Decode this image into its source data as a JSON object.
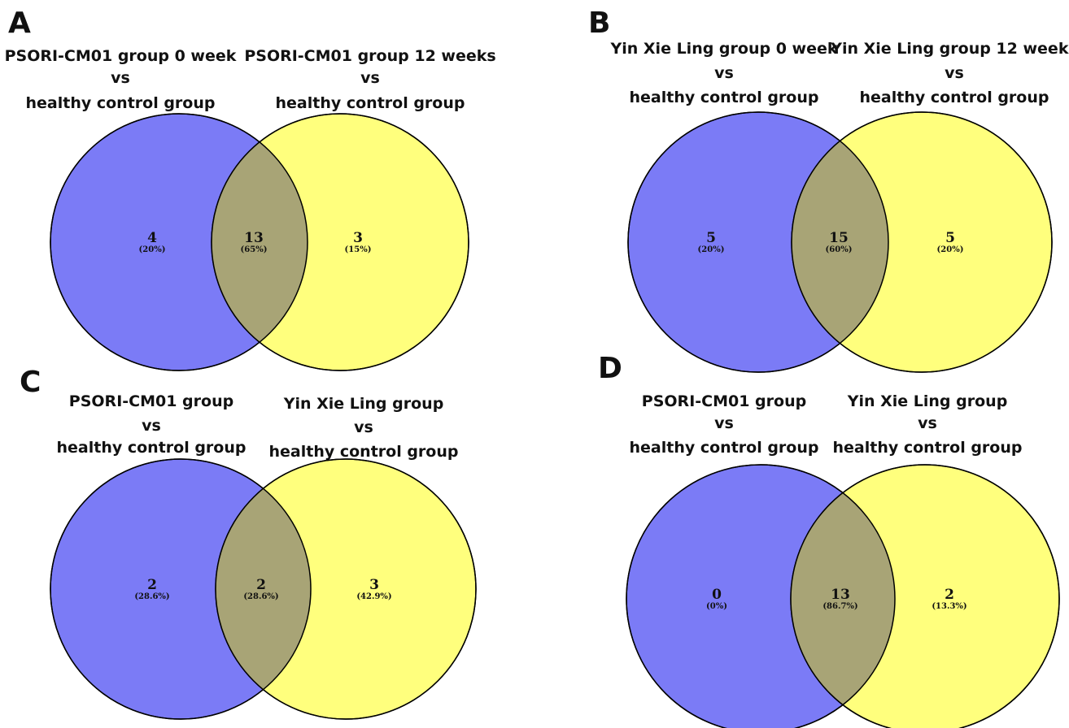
{
  "colors": {
    "left_set": "#7B7BF6",
    "right_set": "#FFFF7D",
    "overlap": "#A8A476",
    "outline": "#000000"
  },
  "panels": [
    {
      "letter": "A",
      "left_label": [
        "PSORI-CM01 group 0 week",
        "vs",
        "healthy control group"
      ],
      "right_label": [
        "PSORI-CM01 group 12 weeks",
        "vs",
        "healthy control group"
      ],
      "left_only": {
        "count": "4",
        "percent": "(20%)"
      },
      "overlap": {
        "count": "13",
        "percent": "(65%)"
      },
      "right_only": {
        "count": "3",
        "percent": "(15%)"
      }
    },
    {
      "letter": "B",
      "left_label": [
        "Yin Xie Ling group 0 week",
        "vs",
        "healthy control group"
      ],
      "right_label": [
        "Yin Xie Ling group 12 weeks",
        "vs",
        "healthy control group"
      ],
      "left_only": {
        "count": "5",
        "percent": "(20%)"
      },
      "overlap": {
        "count": "15",
        "percent": "(60%)"
      },
      "right_only": {
        "count": "5",
        "percent": "(20%)"
      }
    },
    {
      "letter": "C",
      "left_label": [
        "PSORI-CM01 group",
        "vs",
        "healthy control group"
      ],
      "right_label": [
        "Yin Xie Ling group",
        "vs",
        "healthy control group"
      ],
      "left_only": {
        "count": "2",
        "percent": "(28.6%)"
      },
      "overlap": {
        "count": "2",
        "percent": "(28.6%)"
      },
      "right_only": {
        "count": "3",
        "percent": "(42.9%)"
      }
    },
    {
      "letter": "D",
      "left_label": [
        "PSORI-CM01 group",
        "vs",
        "healthy control group"
      ],
      "right_label": [
        "Yin Xie Ling group",
        "vs",
        "healthy control group"
      ],
      "left_only": {
        "count": "0",
        "percent": "(0%)"
      },
      "overlap": {
        "count": "13",
        "percent": "(86.7%)"
      },
      "right_only": {
        "count": "2",
        "percent": "(13.3%)"
      }
    }
  ]
}
